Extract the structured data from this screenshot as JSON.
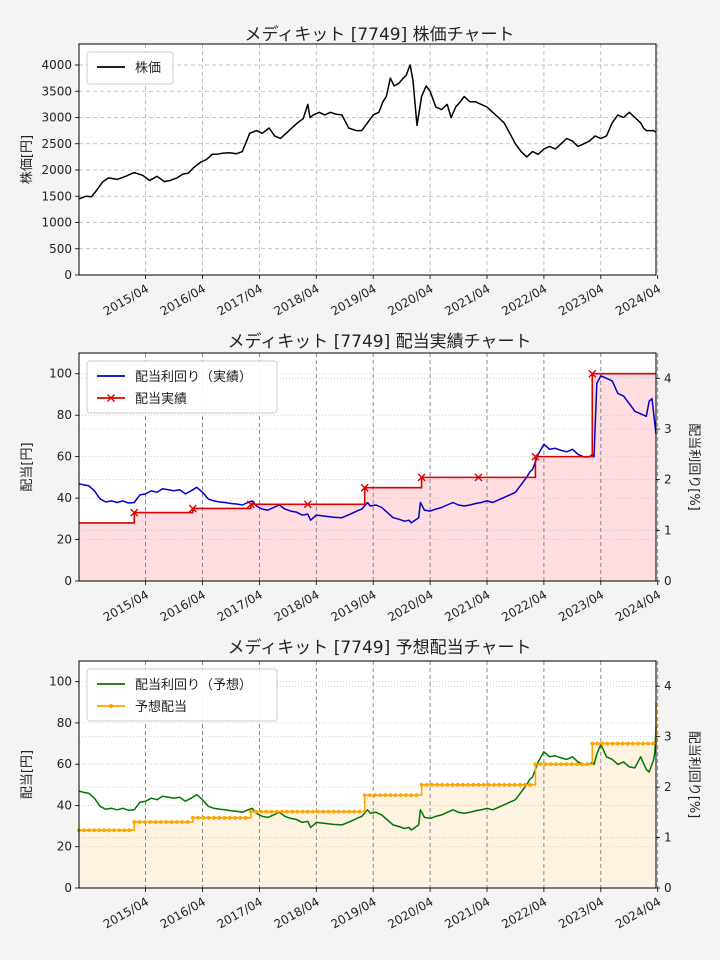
{
  "chart_data": [
    {
      "type": "line",
      "title": "メディキット [7749]  株価チャート",
      "ylabel": "株価[円]",
      "xlabel": "",
      "ylim": [
        0,
        4400
      ],
      "yticks": [
        0,
        500,
        1000,
        1500,
        2000,
        2500,
        3000,
        3500,
        4000
      ],
      "xlim": [
        2014.08,
        2024.22
      ],
      "xticks": [
        {
          "x": 2015.25,
          "label": "2015/04"
        },
        {
          "x": 2016.25,
          "label": "2016/04"
        },
        {
          "x": 2017.25,
          "label": "2017/04"
        },
        {
          "x": 2018.25,
          "label": "2018/04"
        },
        {
          "x": 2019.25,
          "label": "2019/04"
        },
        {
          "x": 2020.25,
          "label": "2020/04"
        },
        {
          "x": 2021.25,
          "label": "2021/04"
        },
        {
          "x": 2022.25,
          "label": "2022/04"
        },
        {
          "x": 2023.25,
          "label": "2023/04"
        },
        {
          "x": 2024.25,
          "label": "2024/04"
        }
      ],
      "grid": true,
      "legend": "top-left",
      "series": [
        {
          "name": "株価",
          "color": "#000000",
          "kind": "line",
          "x": [
            2014.08,
            2014.2,
            2014.3,
            2014.38,
            2014.5,
            2014.6,
            2014.75,
            2014.9,
            2015.05,
            2015.2,
            2015.32,
            2015.45,
            2015.58,
            2015.68,
            2015.8,
            2015.9,
            2016.0,
            2016.1,
            2016.22,
            2016.32,
            2016.42,
            2016.5,
            2016.6,
            2016.72,
            2016.85,
            2016.95,
            2017.08,
            2017.2,
            2017.3,
            2017.42,
            2017.52,
            2017.62,
            2017.72,
            2017.82,
            2017.92,
            2018.02,
            2018.1,
            2018.14,
            2018.2,
            2018.3,
            2018.4,
            2018.5,
            2018.6,
            2018.7,
            2018.82,
            2018.95,
            2019.05,
            2019.15,
            2019.25,
            2019.35,
            2019.42,
            2019.48,
            2019.55,
            2019.62,
            2019.7,
            2019.78,
            2019.83,
            2019.88,
            2019.9,
            2019.95,
            2020.02,
            2020.1,
            2020.18,
            2020.25,
            2020.35,
            2020.45,
            2020.55,
            2020.62,
            2020.7,
            2020.78,
            2020.85,
            2020.95,
            2021.05,
            2021.15,
            2021.25,
            2021.35,
            2021.45,
            2021.55,
            2021.65,
            2021.75,
            2021.85,
            2021.95,
            2022.05,
            2022.15,
            2022.25,
            2022.35,
            2022.45,
            2022.55,
            2022.65,
            2022.75,
            2022.85,
            2022.95,
            2023.05,
            2023.15,
            2023.25,
            2023.35,
            2023.45,
            2023.55,
            2023.65,
            2023.75,
            2023.85,
            2023.95,
            2024.0,
            2024.05,
            2024.12,
            2024.18,
            2024.22
          ],
          "y": [
            1450,
            1500,
            1490,
            1600,
            1780,
            1850,
            1820,
            1880,
            1950,
            1900,
            1800,
            1880,
            1780,
            1800,
            1850,
            1920,
            1940,
            2050,
            2150,
            2200,
            2300,
            2300,
            2320,
            2330,
            2310,
            2350,
            2700,
            2750,
            2700,
            2800,
            2650,
            2600,
            2700,
            2800,
            2900,
            2980,
            3250,
            3000,
            3050,
            3100,
            3050,
            3100,
            3060,
            3050,
            2800,
            2750,
            2750,
            2900,
            3050,
            3100,
            3300,
            3400,
            3750,
            3600,
            3650,
            3750,
            3800,
            3950,
            4000,
            3700,
            2850,
            3400,
            3600,
            3500,
            3200,
            3150,
            3250,
            3000,
            3200,
            3300,
            3400,
            3300,
            3300,
            3250,
            3200,
            3100,
            3000,
            2900,
            2700,
            2500,
            2350,
            2250,
            2350,
            2300,
            2400,
            2450,
            2400,
            2500,
            2600,
            2550,
            2450,
            2500,
            2550,
            2650,
            2600,
            2650,
            2900,
            3050,
            3000,
            3100,
            3000,
            2900,
            2800,
            2750,
            2750,
            2750,
            2720
          ]
        }
      ]
    },
    {
      "type": "line",
      "title": "メディキット [7749]  配当実績チャート",
      "ylabel": "配当[円]",
      "ylabel_right": "配当利回り[%]",
      "ylim": [
        0,
        110
      ],
      "yticks": [
        0,
        20,
        40,
        60,
        80,
        100
      ],
      "ylim_right": [
        0,
        4.5
      ],
      "yticks_right": [
        0,
        1,
        2,
        3,
        4
      ],
      "xlim": [
        2014.08,
        2024.22
      ],
      "grid": true,
      "legend": "top-left",
      "series": [
        {
          "name": "配当利回り（実績）",
          "color": "#0000cc",
          "kind": "line",
          "axis": "right",
          "x": [
            2014.08,
            2014.15,
            2014.25,
            2014.35,
            2014.45,
            2014.55,
            2014.65,
            2014.75,
            2014.85,
            2014.95,
            2015.05,
            2015.15,
            2015.25,
            2015.35,
            2015.45,
            2015.55,
            2015.65,
            2015.75,
            2015.85,
            2015.95,
            2016.05,
            2016.15,
            2016.2,
            2016.25,
            2016.35,
            2016.45,
            2016.55,
            2016.65,
            2016.75,
            2016.85,
            2016.95,
            2017.05,
            2017.12,
            2017.2,
            2017.3,
            2017.4,
            2017.5,
            2017.6,
            2017.7,
            2017.8,
            2017.9,
            2018.0,
            2018.1,
            2018.15,
            2018.25,
            2018.4,
            2018.55,
            2018.7,
            2018.85,
            2019.0,
            2019.05,
            2019.15,
            2019.2,
            2019.3,
            2019.4,
            2019.5,
            2019.6,
            2019.7,
            2019.8,
            2019.88,
            2019.92,
            2020.05,
            2020.08,
            2020.15,
            2020.25,
            2020.35,
            2020.45,
            2020.55,
            2020.65,
            2020.75,
            2020.85,
            2020.95,
            2021.05,
            2021.15,
            2021.25,
            2021.35,
            2021.45,
            2021.55,
            2021.65,
            2021.75,
            2021.85,
            2021.95,
            2022.0,
            2022.05,
            2022.15,
            2022.25,
            2022.35,
            2022.45,
            2022.55,
            2022.65,
            2022.75,
            2022.85,
            2022.95,
            2023.05,
            2023.1,
            2023.13,
            2023.18,
            2023.25,
            2023.35,
            2023.45,
            2023.55,
            2023.65,
            2023.75,
            2023.85,
            2023.95,
            2024.05,
            2024.1,
            2024.15,
            2024.18,
            2024.2,
            2024.22
          ],
          "y": [
            1.92,
            1.9,
            1.88,
            1.78,
            1.62,
            1.56,
            1.58,
            1.55,
            1.58,
            1.54,
            1.55,
            1.7,
            1.72,
            1.78,
            1.75,
            1.82,
            1.8,
            1.78,
            1.8,
            1.72,
            1.78,
            1.85,
            1.8,
            1.75,
            1.62,
            1.58,
            1.56,
            1.55,
            1.53,
            1.52,
            1.5,
            1.55,
            1.58,
            1.48,
            1.42,
            1.4,
            1.45,
            1.5,
            1.42,
            1.38,
            1.36,
            1.3,
            1.32,
            1.2,
            1.3,
            1.28,
            1.26,
            1.25,
            1.32,
            1.4,
            1.42,
            1.55,
            1.48,
            1.5,
            1.45,
            1.35,
            1.25,
            1.22,
            1.18,
            1.2,
            1.15,
            1.25,
            1.55,
            1.4,
            1.38,
            1.42,
            1.45,
            1.5,
            1.55,
            1.5,
            1.48,
            1.5,
            1.53,
            1.55,
            1.58,
            1.55,
            1.6,
            1.65,
            1.7,
            1.75,
            1.9,
            2.05,
            2.15,
            2.2,
            2.5,
            2.7,
            2.6,
            2.62,
            2.58,
            2.55,
            2.6,
            2.5,
            2.45,
            2.45,
            2.5,
            2.45,
            3.9,
            4.05,
            4.0,
            3.95,
            3.7,
            3.65,
            3.5,
            3.35,
            3.3,
            3.25,
            3.55,
            3.6,
            3.3,
            3.1,
            2.9
          ]
        },
        {
          "name": "配当実績",
          "color": "#dd0000",
          "kind": "step-marker",
          "x": [
            2014.08,
            2015.05,
            2016.08,
            2017.1,
            2018.1,
            2019.1,
            2020.1,
            2021.1,
            2022.1,
            2023.1,
            2024.22
          ],
          "y": [
            28,
            33,
            35,
            37,
            37,
            45,
            50,
            50,
            60,
            100,
            100
          ],
          "markers_x": [
            2015.05,
            2016.08,
            2017.1,
            2018.1,
            2019.1,
            2020.1,
            2021.1,
            2022.1,
            2023.1
          ],
          "markers_y": [
            33,
            35,
            37,
            37,
            45,
            50,
            50,
            60,
            100
          ],
          "fill": "#ffdde0"
        }
      ]
    },
    {
      "type": "line",
      "title": "メディキット [7749]  予想配当チャート",
      "ylabel": "配当[円]",
      "ylabel_right": "配当利回り[%]",
      "ylim": [
        0,
        110
      ],
      "yticks": [
        0,
        20,
        40,
        60,
        80,
        100
      ],
      "ylim_right": [
        0,
        4.5
      ],
      "yticks_right": [
        0,
        1,
        2,
        3,
        4
      ],
      "xlim": [
        2014.08,
        2024.22
      ],
      "grid": true,
      "legend": "top-left",
      "series": [
        {
          "name": "配当利回り（予想）",
          "color": "#007700",
          "kind": "line",
          "axis": "right",
          "x": [
            2014.08,
            2014.15,
            2014.25,
            2014.35,
            2014.45,
            2014.55,
            2014.65,
            2014.75,
            2014.85,
            2014.95,
            2015.05,
            2015.15,
            2015.25,
            2015.35,
            2015.45,
            2015.55,
            2015.65,
            2015.75,
            2015.85,
            2015.95,
            2016.05,
            2016.15,
            2016.2,
            2016.25,
            2016.35,
            2016.45,
            2016.55,
            2016.65,
            2016.75,
            2016.85,
            2016.95,
            2017.05,
            2017.12,
            2017.2,
            2017.3,
            2017.4,
            2017.5,
            2017.6,
            2017.7,
            2017.8,
            2017.9,
            2018.0,
            2018.1,
            2018.15,
            2018.25,
            2018.4,
            2018.55,
            2018.7,
            2018.85,
            2019.0,
            2019.05,
            2019.15,
            2019.2,
            2019.3,
            2019.4,
            2019.5,
            2019.6,
            2019.7,
            2019.8,
            2019.88,
            2019.92,
            2020.05,
            2020.08,
            2020.15,
            2020.25,
            2020.35,
            2020.45,
            2020.55,
            2020.65,
            2020.75,
            2020.85,
            2020.95,
            2021.05,
            2021.15,
            2021.25,
            2021.35,
            2021.45,
            2021.55,
            2021.65,
            2021.75,
            2021.85,
            2021.95,
            2022.0,
            2022.05,
            2022.15,
            2022.25,
            2022.35,
            2022.45,
            2022.55,
            2022.65,
            2022.75,
            2022.85,
            2022.95,
            2023.05,
            2023.1,
            2023.13,
            2023.18,
            2023.25,
            2023.35,
            2023.45,
            2023.55,
            2023.65,
            2023.75,
            2023.85,
            2023.95,
            2024.05,
            2024.1,
            2024.15,
            2024.18,
            2024.2,
            2024.22
          ],
          "y": [
            1.92,
            1.9,
            1.88,
            1.78,
            1.62,
            1.56,
            1.58,
            1.55,
            1.58,
            1.54,
            1.55,
            1.7,
            1.72,
            1.78,
            1.75,
            1.82,
            1.8,
            1.78,
            1.8,
            1.72,
            1.78,
            1.85,
            1.8,
            1.75,
            1.62,
            1.58,
            1.56,
            1.55,
            1.53,
            1.52,
            1.5,
            1.55,
            1.58,
            1.48,
            1.42,
            1.4,
            1.45,
            1.5,
            1.42,
            1.38,
            1.36,
            1.3,
            1.32,
            1.2,
            1.3,
            1.28,
            1.26,
            1.25,
            1.32,
            1.4,
            1.42,
            1.55,
            1.48,
            1.5,
            1.45,
            1.35,
            1.25,
            1.22,
            1.18,
            1.2,
            1.15,
            1.25,
            1.55,
            1.4,
            1.38,
            1.42,
            1.45,
            1.5,
            1.55,
            1.5,
            1.48,
            1.5,
            1.53,
            1.55,
            1.58,
            1.55,
            1.6,
            1.65,
            1.7,
            1.75,
            1.9,
            2.05,
            2.15,
            2.2,
            2.5,
            2.7,
            2.6,
            2.62,
            2.58,
            2.55,
            2.6,
            2.5,
            2.45,
            2.45,
            2.5,
            2.45,
            2.65,
            2.85,
            2.6,
            2.55,
            2.45,
            2.5,
            2.4,
            2.38,
            2.6,
            2.35,
            2.3,
            2.45,
            2.55,
            2.7,
            3.2
          ]
        },
        {
          "name": "予想配当",
          "color": "#ffa500",
          "kind": "step-dots",
          "x": [
            2014.08,
            2015.05,
            2016.08,
            2017.1,
            2018.1,
            2019.1,
            2020.1,
            2021.1,
            2022.1,
            2023.1,
            2024.17,
            2024.22
          ],
          "y": [
            28,
            32,
            34,
            37,
            37,
            45,
            50,
            50,
            60,
            70,
            70,
            90
          ],
          "fill": "#fdf3e0"
        }
      ]
    }
  ]
}
